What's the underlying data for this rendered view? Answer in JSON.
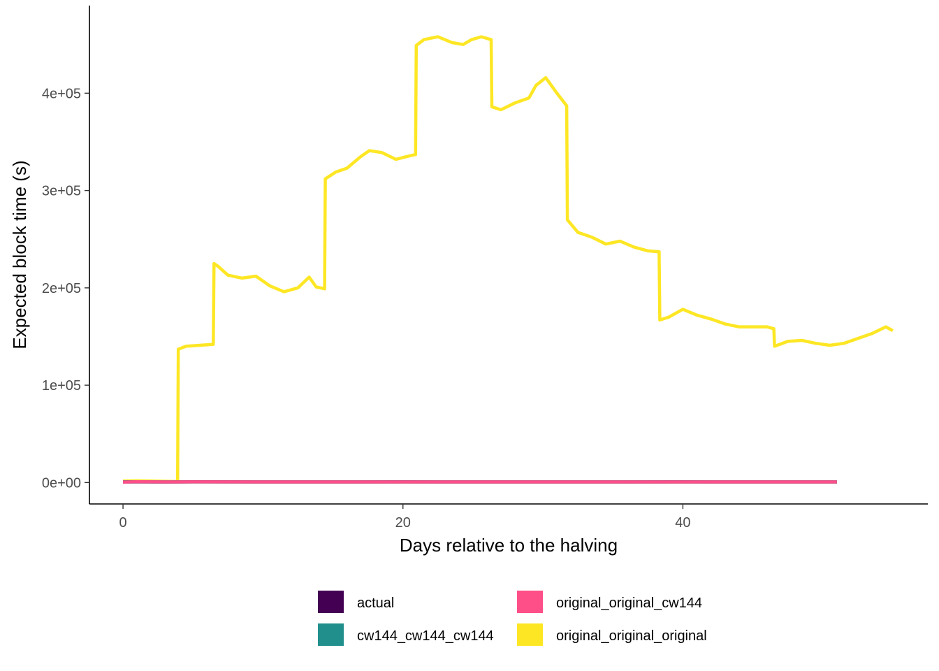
{
  "chart_data": {
    "type": "line",
    "title": "",
    "xlabel": "Days relative to the halving",
    "ylabel": "Expected block time (s)",
    "xlim": [
      -2.4,
      57.5
    ],
    "ylim": [
      -22000,
      490000
    ],
    "x_ticks": [
      0,
      20,
      40
    ],
    "x_tick_labels": [
      "0",
      "20",
      "40"
    ],
    "y_ticks": [
      0,
      100000,
      200000,
      300000,
      400000
    ],
    "y_tick_labels": [
      "0e+00",
      "1e+05",
      "2e+05",
      "3e+05",
      "4e+05"
    ],
    "grid": false,
    "legend_position": "bottom",
    "series": [
      {
        "name": "actual",
        "color": "#440154",
        "x": [
          0,
          1,
          3,
          5,
          10,
          15,
          20,
          25,
          30,
          35,
          40,
          45,
          51
        ],
        "y": [
          600,
          700,
          550,
          750,
          650,
          620,
          700,
          600,
          650,
          640,
          700,
          620,
          600
        ]
      },
      {
        "name": "cw144_cw144_cw144",
        "color": "#21908C",
        "x": [
          0,
          1,
          3,
          5,
          10,
          15,
          20,
          25,
          30,
          35,
          40,
          45,
          51
        ],
        "y": [
          600,
          620,
          600,
          600,
          600,
          600,
          600,
          600,
          600,
          600,
          600,
          600,
          600
        ]
      },
      {
        "name": "original_original_cw144",
        "color": "#FF4F88",
        "x": [
          0,
          1,
          3,
          5,
          10,
          15,
          20,
          25,
          30,
          35,
          40,
          45,
          51
        ],
        "y": [
          500,
          800,
          600,
          700,
          650,
          600,
          620,
          640,
          600,
          620,
          610,
          600,
          600
        ]
      },
      {
        "name": "original_original_original",
        "color": "#FDE725",
        "x": [
          0,
          1,
          2,
          3.9,
          3.95,
          4.5,
          5.5,
          6.45,
          6.5,
          6.8,
          7.5,
          8.5,
          9.5,
          10.5,
          11.5,
          12.5,
          13.3,
          13.8,
          14.4,
          14.45,
          15.2,
          16,
          17,
          17.6,
          18.5,
          19.5,
          20.3,
          20.9,
          20.95,
          21.5,
          22.5,
          23.5,
          24.3,
          24.9,
          25.6,
          26.3,
          26.35,
          27,
          28,
          29,
          29.5,
          30.2,
          31,
          31.7,
          31.75,
          32.5,
          33.5,
          34.5,
          35.5,
          36.5,
          37.5,
          38.3,
          38.35,
          39,
          40,
          41,
          42,
          43,
          44,
          45,
          46,
          46.5,
          46.55,
          47.5,
          48.5,
          49.5,
          50.5,
          51.5,
          52.5,
          53.5,
          54.5,
          55
        ],
        "y": [
          1500,
          1800,
          1500,
          1000,
          137000,
          140000,
          141000,
          142000,
          225000,
          222000,
          213000,
          210000,
          212000,
          202000,
          196000,
          200000,
          211000,
          201000,
          199000,
          312000,
          319000,
          323000,
          335000,
          341000,
          339000,
          332000,
          335000,
          337000,
          449000,
          455000,
          458000,
          452000,
          450000,
          455000,
          458000,
          455000,
          386000,
          383000,
          390000,
          395000,
          408000,
          416000,
          400000,
          387000,
          270000,
          257000,
          252000,
          245000,
          248000,
          242000,
          238000,
          237000,
          167000,
          170000,
          178000,
          172000,
          168000,
          163000,
          160000,
          160000,
          160000,
          158000,
          140000,
          145000,
          146000,
          143000,
          141000,
          143000,
          148000,
          153000,
          160000,
          156000
        ]
      }
    ]
  }
}
